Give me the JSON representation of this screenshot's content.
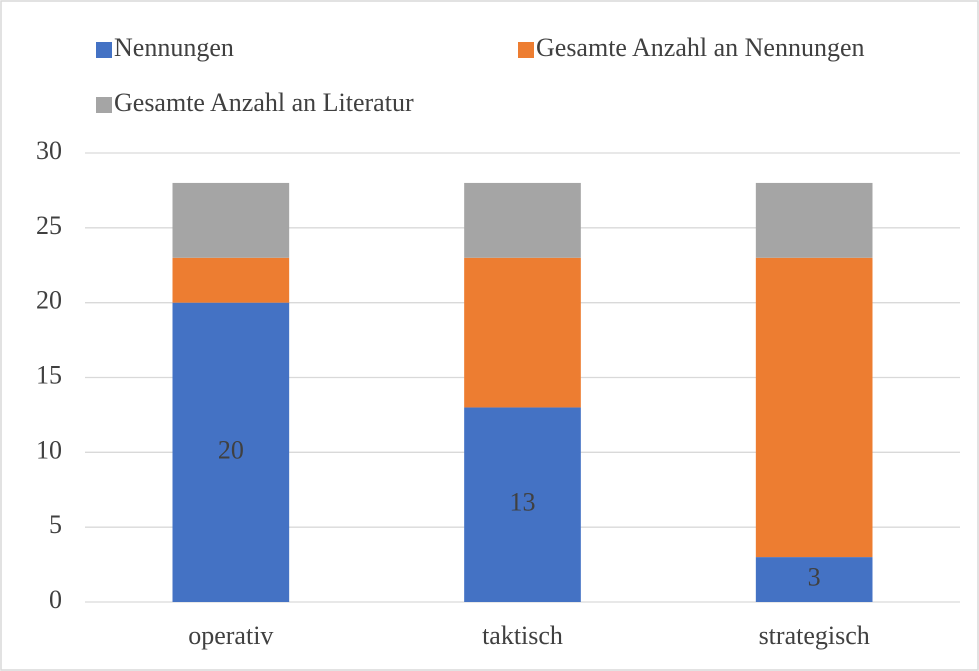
{
  "chart_data": {
    "type": "stacked_bar",
    "categories": [
      "operativ",
      "taktisch",
      "strategisch"
    ],
    "series": [
      {
        "name": "Nennungen",
        "color": "#4472c4",
        "values": [
          20,
          13,
          3
        ],
        "data_labels": true
      },
      {
        "name": "Gesamte Anzahl an Nennungen",
        "color": "#ed7d31",
        "values": [
          3,
          10,
          20
        ]
      },
      {
        "name": "Gesamte Anzahl an Literatur",
        "color": "#a5a5a5",
        "values": [
          5,
          5,
          5
        ]
      }
    ],
    "ylim": [
      0,
      30
    ],
    "yticks": [
      0,
      5,
      10,
      15,
      20,
      25,
      30
    ],
    "grid": true,
    "legend": "top"
  }
}
